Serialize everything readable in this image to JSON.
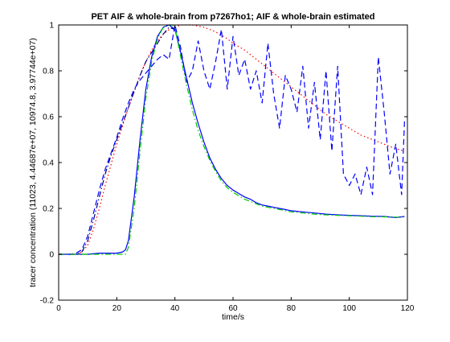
{
  "chart_data": {
    "type": "line",
    "title": "PET AIF & whole-brain from p7267ho1; AIF & whole-brain estimated",
    "xlabel": "time/s",
    "ylabel": "tracer concentration (11023, 4.44687e+07, 10974.8, 3.97744e+07)",
    "xlim": [
      0,
      120
    ],
    "ylim": [
      -0.2,
      1
    ],
    "xticks": [
      0,
      20,
      40,
      60,
      80,
      100,
      120
    ],
    "yticks": [
      -0.2,
      0,
      0.2,
      0.4,
      0.6,
      0.8,
      1
    ],
    "xtick_labels": [
      "0",
      "20",
      "40",
      "60",
      "80",
      "100",
      "120"
    ],
    "ytick_labels": [
      "-0.2",
      "0",
      "0.2",
      "0.4",
      "0.6",
      "0.8",
      "1"
    ],
    "grid": false,
    "legend": "none",
    "series": [
      {
        "color": "#ff0000",
        "style": "dotted",
        "x": [
          0,
          6,
          8,
          10,
          12,
          14,
          16,
          18,
          20,
          22,
          24,
          26,
          28,
          30,
          32,
          34,
          36,
          38,
          40,
          42,
          44,
          46,
          48,
          50,
          52,
          54,
          56,
          58,
          60,
          64,
          68,
          72,
          76,
          80,
          84,
          88,
          92,
          96,
          100,
          104,
          108,
          112,
          116,
          119
        ],
        "y": [
          0,
          0,
          0.01,
          0.04,
          0.11,
          0.2,
          0.3,
          0.39,
          0.48,
          0.56,
          0.64,
          0.71,
          0.78,
          0.84,
          0.89,
          0.93,
          0.96,
          0.98,
          0.99,
          1.0,
          1.0,
          1.0,
          0.995,
          0.99,
          0.98,
          0.97,
          0.955,
          0.94,
          0.92,
          0.89,
          0.85,
          0.81,
          0.77,
          0.73,
          0.69,
          0.65,
          0.61,
          0.58,
          0.55,
          0.52,
          0.5,
          0.48,
          0.46,
          0.45
        ]
      },
      {
        "color": "#00008b",
        "style": "dashdot",
        "x": [
          0,
          6,
          8,
          10,
          12,
          14,
          16,
          18,
          20,
          22,
          24,
          26,
          28,
          30,
          32,
          34,
          36,
          38,
          40
        ],
        "y": [
          0,
          0,
          0.01,
          0.06,
          0.15,
          0.25,
          0.35,
          0.43,
          0.5,
          0.57,
          0.64,
          0.71,
          0.78,
          0.84,
          0.88,
          0.92,
          0.96,
          0.99,
          0.98
        ]
      },
      {
        "color": "#0000ff",
        "style": "dashed",
        "x": [
          0,
          4,
          6,
          8,
          10,
          12,
          14,
          16,
          18,
          20,
          22,
          24,
          26,
          28,
          30,
          32,
          34,
          36,
          38,
          40,
          42,
          44,
          46,
          48,
          50,
          52,
          54,
          56,
          58,
          60,
          62,
          64,
          66,
          68,
          70,
          72,
          74,
          76,
          78,
          80,
          82,
          84,
          86,
          88,
          90,
          92,
          94,
          96,
          98,
          100,
          102,
          104,
          106,
          108,
          110,
          112,
          114,
          116,
          118,
          119
        ],
        "y": [
          0,
          0,
          0.005,
          0.02,
          0.08,
          0.18,
          0.28,
          0.37,
          0.44,
          0.51,
          0.59,
          0.66,
          0.72,
          0.76,
          0.79,
          0.82,
          0.85,
          0.87,
          0.85,
          1.0,
          0.9,
          0.75,
          0.8,
          0.93,
          0.8,
          0.72,
          0.84,
          0.98,
          0.72,
          0.95,
          0.78,
          0.85,
          0.72,
          0.8,
          0.66,
          0.92,
          0.7,
          0.55,
          0.78,
          0.72,
          0.62,
          0.82,
          0.55,
          0.75,
          0.5,
          0.8,
          0.45,
          0.82,
          0.35,
          0.3,
          0.35,
          0.26,
          0.38,
          0.26,
          0.86,
          0.62,
          0.35,
          0.48,
          0.26,
          0.58
        ]
      },
      {
        "color": "#0000ff",
        "style": "solid",
        "x": [
          0,
          6,
          10,
          14,
          18,
          20,
          22,
          23,
          24,
          26,
          28,
          30,
          32,
          34,
          36,
          38,
          39,
          40,
          42,
          44,
          46,
          48,
          50,
          52,
          54,
          56,
          58,
          60,
          62,
          64,
          66,
          68,
          70,
          72,
          74,
          76,
          78,
          80,
          84,
          88,
          92,
          96,
          100,
          104,
          108,
          112,
          116,
          119
        ],
        "y": [
          0,
          0,
          0,
          0.005,
          0.005,
          0.005,
          0.01,
          0.02,
          0.06,
          0.25,
          0.5,
          0.72,
          0.86,
          0.95,
          0.99,
          1.0,
          0.99,
          0.98,
          0.88,
          0.77,
          0.66,
          0.57,
          0.49,
          0.42,
          0.37,
          0.33,
          0.3,
          0.28,
          0.265,
          0.25,
          0.24,
          0.225,
          0.215,
          0.21,
          0.205,
          0.2,
          0.195,
          0.19,
          0.185,
          0.18,
          0.175,
          0.172,
          0.17,
          0.168,
          0.166,
          0.165,
          0.16,
          0.165
        ]
      },
      {
        "color": "#00cc00",
        "style": "dashdot",
        "x": [
          0,
          6,
          10,
          14,
          18,
          20,
          22,
          23,
          24,
          26,
          28,
          30,
          32,
          34,
          36,
          38,
          39,
          40,
          42,
          44,
          46,
          48,
          50,
          52,
          54,
          56,
          58,
          60,
          62,
          64,
          66,
          68,
          70,
          72,
          74,
          76,
          78,
          80,
          84,
          88,
          92,
          96,
          100,
          104,
          108,
          112,
          116,
          119
        ],
        "y": [
          0,
          0,
          0,
          0,
          0,
          0,
          0,
          0,
          0.03,
          0.2,
          0.45,
          0.68,
          0.84,
          0.94,
          0.99,
          1.0,
          1.0,
          0.99,
          0.86,
          0.74,
          0.63,
          0.54,
          0.47,
          0.41,
          0.36,
          0.32,
          0.29,
          0.27,
          0.255,
          0.24,
          0.23,
          0.22,
          0.21,
          0.205,
          0.2,
          0.195,
          0.19,
          0.185,
          0.18,
          0.175,
          0.172,
          0.17,
          0.168,
          0.166,
          0.164,
          0.163,
          0.162,
          0.162
        ]
      }
    ]
  }
}
